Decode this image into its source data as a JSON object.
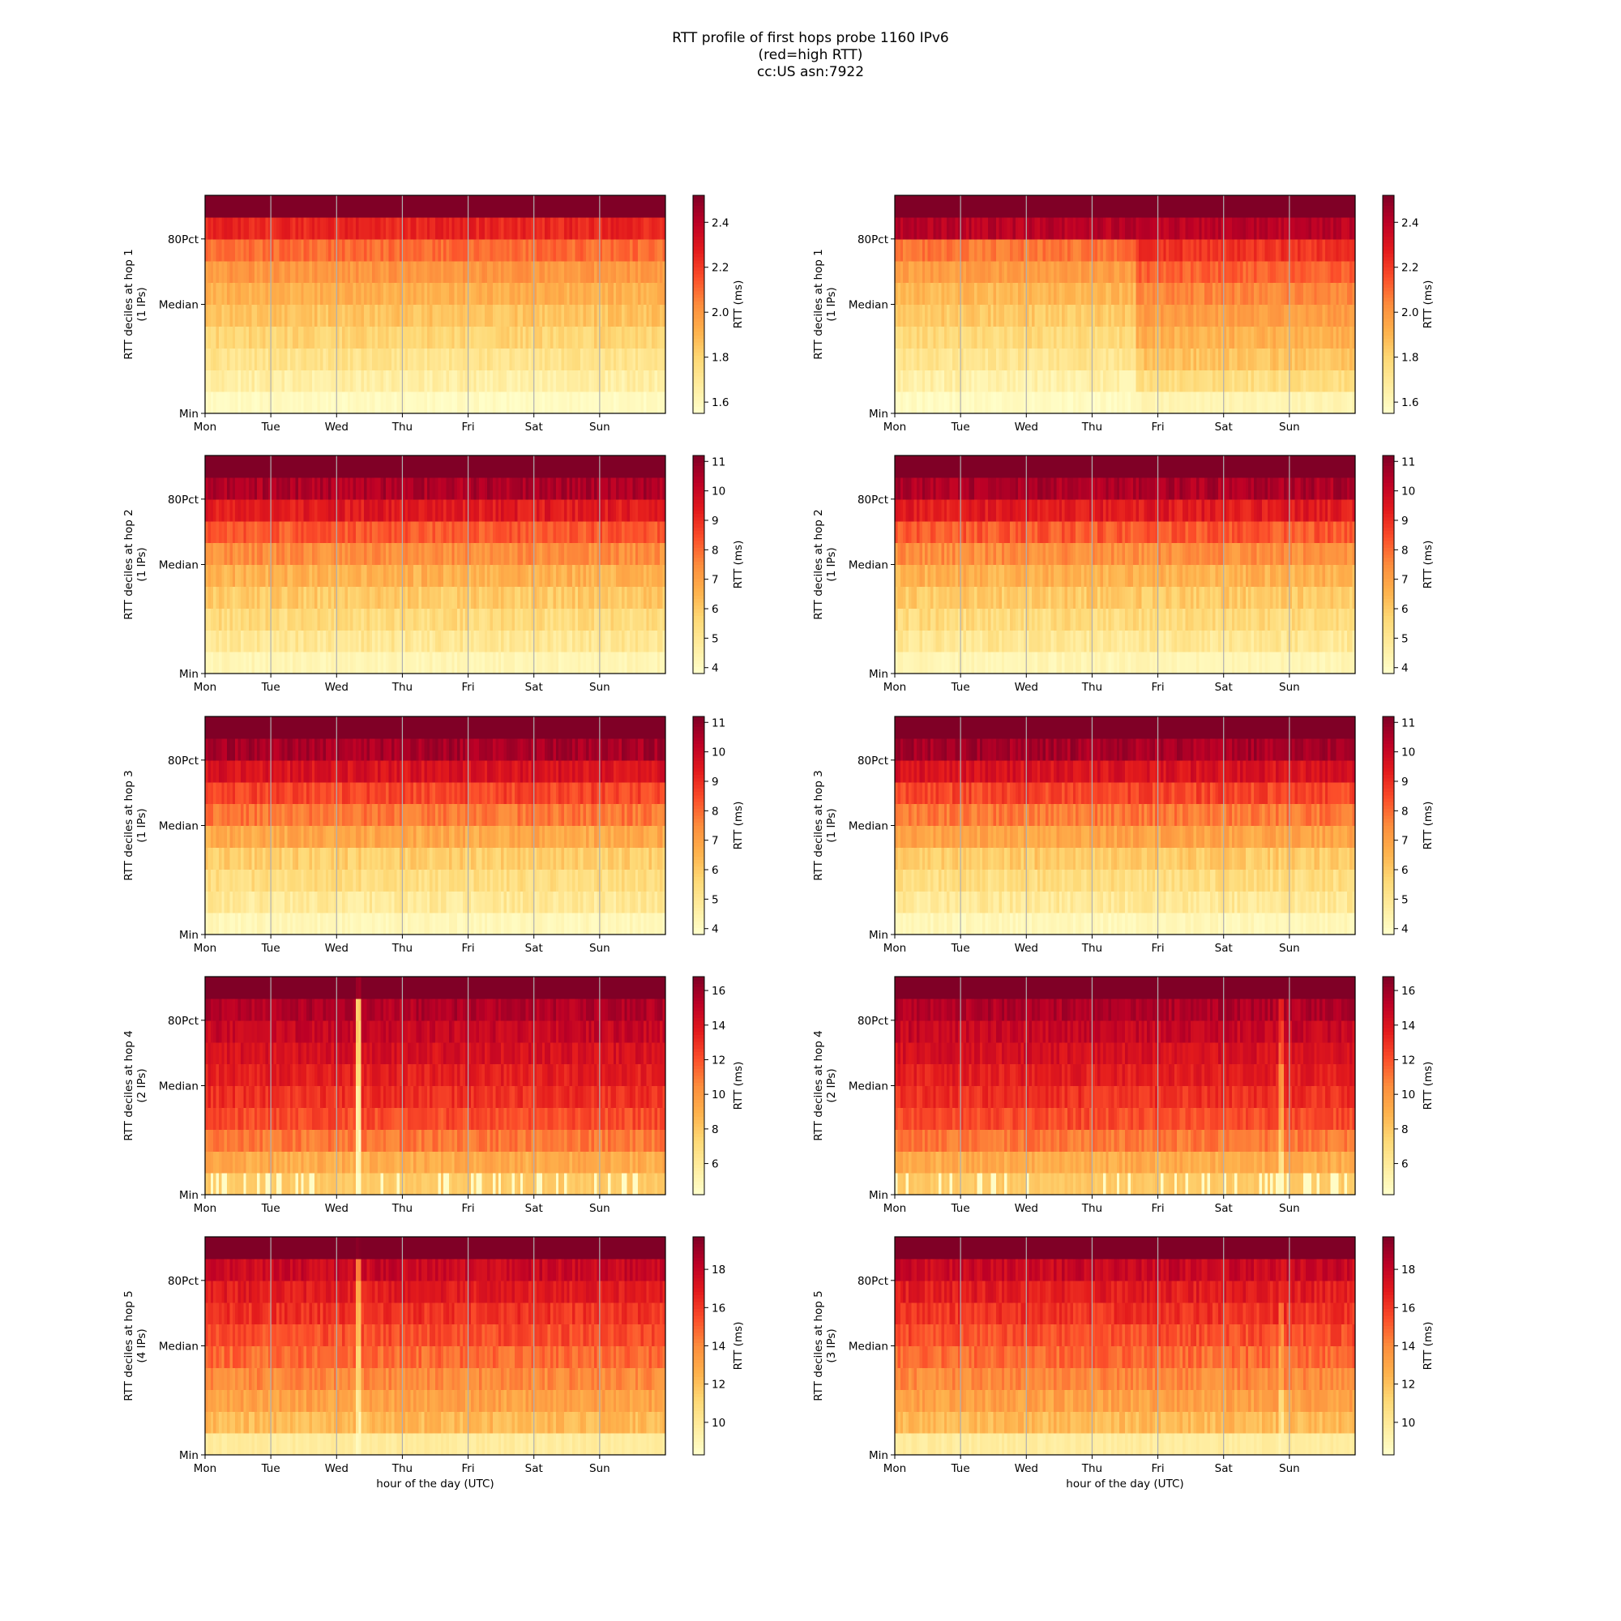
{
  "figure": {
    "title_lines": [
      "RTT profile of first hops probe 1160 IPv6",
      "(red=high RTT)",
      "cc:US asn:7922"
    ]
  },
  "colormap": {
    "name": "YlOrRd",
    "stops": [
      "#ffffcc",
      "#ffeda0",
      "#fed976",
      "#feb24c",
      "#fd8d3c",
      "#fc4e2a",
      "#e31a1c",
      "#bd0026",
      "#800026"
    ]
  },
  "chart_data": [
    {
      "type": "heatmap",
      "panel": "left",
      "ylabel": "RTT deciles at hop 1",
      "ylabel2": "(1 IPs)",
      "xlabel": "",
      "x_ticks": [
        "Mon",
        "Tue",
        "Wed",
        "Thu",
        "Fri",
        "Sat",
        "Sun"
      ],
      "y_ticks": [
        "Min",
        "Median",
        "80Pct"
      ],
      "colorbar_label": "RTT (ms)",
      "colorbar_ticks": [
        1.6,
        1.8,
        2.0,
        2.2,
        2.4
      ],
      "clim": [
        1.55,
        2.52
      ],
      "deciles_ms": [
        1.58,
        1.66,
        1.73,
        1.8,
        1.86,
        1.92,
        2.0,
        2.1,
        2.25,
        2.55
      ],
      "noise": 0.05,
      "seed": 11,
      "events": []
    },
    {
      "type": "heatmap",
      "panel": "right",
      "ylabel": "RTT deciles at hop 1",
      "ylabel2": "(1 IPs)",
      "xlabel": "",
      "x_ticks": [
        "Mon",
        "Tue",
        "Wed",
        "Thu",
        "Fri",
        "Sat",
        "Sun"
      ],
      "y_ticks": [
        "Min",
        "Median",
        "80Pct"
      ],
      "colorbar_label": "RTT (ms)",
      "colorbar_ticks": [
        1.6,
        1.8,
        2.0,
        2.2,
        2.4
      ],
      "clim": [
        1.55,
        2.52
      ],
      "deciles_ms": [
        1.58,
        1.65,
        1.72,
        1.78,
        1.84,
        1.9,
        1.98,
        2.08,
        2.4,
        2.55
      ],
      "noise": 0.05,
      "seed": 12,
      "events": [
        {
          "start_day": 3.65,
          "end_day": 7.0,
          "deciles_ms": [
            1.62,
            1.76,
            1.86,
            1.92,
            1.98,
            2.04,
            2.12,
            2.22,
            2.4,
            2.55
          ]
        }
      ]
    },
    {
      "type": "heatmap",
      "panel": "left",
      "ylabel": "RTT deciles at hop 2",
      "ylabel2": "(1 IPs)",
      "xlabel": "",
      "x_ticks": [
        "Mon",
        "Tue",
        "Wed",
        "Thu",
        "Fri",
        "Sat",
        "Sun"
      ],
      "y_ticks": [
        "Min",
        "Median",
        "80Pct"
      ],
      "colorbar_label": "RTT (ms)",
      "colorbar_ticks": [
        4,
        5,
        6,
        7,
        8,
        9,
        10,
        11
      ],
      "clim": [
        3.8,
        11.2
      ],
      "deciles_ms": [
        4.3,
        5.0,
        5.5,
        6.0,
        6.6,
        7.4,
        8.3,
        9.4,
        10.5,
        11.5
      ],
      "noise": 0.45,
      "seed": 21,
      "events": []
    },
    {
      "type": "heatmap",
      "panel": "right",
      "ylabel": "RTT deciles at hop 2",
      "ylabel2": "(1 IPs)",
      "xlabel": "",
      "x_ticks": [
        "Mon",
        "Tue",
        "Wed",
        "Thu",
        "Fri",
        "Sat",
        "Sun"
      ],
      "y_ticks": [
        "Min",
        "Median",
        "80Pct"
      ],
      "colorbar_label": "RTT (ms)",
      "colorbar_ticks": [
        4,
        5,
        6,
        7,
        8,
        9,
        10,
        11
      ],
      "clim": [
        3.8,
        11.2
      ],
      "deciles_ms": [
        4.3,
        5.0,
        5.5,
        6.0,
        6.6,
        7.4,
        8.3,
        9.4,
        10.5,
        11.5
      ],
      "noise": 0.45,
      "seed": 22,
      "events": []
    },
    {
      "type": "heatmap",
      "panel": "left",
      "ylabel": "RTT deciles at hop 3",
      "ylabel2": "(1 IPs)",
      "xlabel": "",
      "x_ticks": [
        "Mon",
        "Tue",
        "Wed",
        "Thu",
        "Fri",
        "Sat",
        "Sun"
      ],
      "y_ticks": [
        "Min",
        "Median",
        "80Pct"
      ],
      "colorbar_label": "RTT (ms)",
      "colorbar_ticks": [
        4,
        5,
        6,
        7,
        8,
        9,
        10,
        11
      ],
      "clim": [
        3.8,
        11.2
      ],
      "deciles_ms": [
        4.2,
        4.9,
        5.4,
        5.9,
        6.8,
        7.8,
        8.6,
        9.6,
        10.6,
        11.5
      ],
      "noise": 0.45,
      "seed": 31,
      "events": []
    },
    {
      "type": "heatmap",
      "panel": "right",
      "ylabel": "RTT deciles at hop 3",
      "ylabel2": "(1 IPs)",
      "xlabel": "",
      "x_ticks": [
        "Mon",
        "Tue",
        "Wed",
        "Thu",
        "Fri",
        "Sat",
        "Sun"
      ],
      "y_ticks": [
        "Min",
        "Median",
        "80Pct"
      ],
      "colorbar_label": "RTT (ms)",
      "colorbar_ticks": [
        4,
        5,
        6,
        7,
        8,
        9,
        10,
        11
      ],
      "clim": [
        3.8,
        11.2
      ],
      "deciles_ms": [
        4.2,
        4.9,
        5.4,
        6.0,
        6.9,
        7.8,
        8.6,
        9.6,
        10.6,
        11.5
      ],
      "noise": 0.45,
      "seed": 32,
      "events": []
    },
    {
      "type": "heatmap",
      "panel": "left",
      "ylabel": "RTT deciles at hop 4",
      "ylabel2": "(2 IPs)",
      "xlabel": "",
      "x_ticks": [
        "Mon",
        "Tue",
        "Wed",
        "Thu",
        "Fri",
        "Sat",
        "Sun"
      ],
      "y_ticks": [
        "Min",
        "Median",
        "80Pct"
      ],
      "colorbar_label": "RTT (ms)",
      "colorbar_ticks": [
        6,
        8,
        10,
        12,
        14,
        16
      ],
      "clim": [
        4.2,
        16.8
      ],
      "deciles_ms": [
        8.0,
        9.2,
        11.0,
        12.2,
        13.0,
        13.6,
        14.2,
        14.8,
        15.5,
        17.5
      ],
      "noise": 0.7,
      "seed": 41,
      "min_row_spikes": true,
      "events": [
        {
          "start_day": 2.3,
          "end_day": 2.38,
          "deciles_ms": [
            4.6,
            5.0,
            5.4,
            5.8,
            6.2,
            6.6,
            7.0,
            7.5,
            8.2,
            16.0
          ]
        }
      ]
    },
    {
      "type": "heatmap",
      "panel": "right",
      "ylabel": "RTT deciles at hop 4",
      "ylabel2": "(2 IPs)",
      "xlabel": "",
      "x_ticks": [
        "Mon",
        "Tue",
        "Wed",
        "Thu",
        "Fri",
        "Sat",
        "Sun"
      ],
      "y_ticks": [
        "Min",
        "Median",
        "80Pct"
      ],
      "colorbar_label": "RTT (ms)",
      "colorbar_ticks": [
        6,
        8,
        10,
        12,
        14,
        16
      ],
      "clim": [
        4.2,
        16.8
      ],
      "deciles_ms": [
        8.0,
        9.2,
        11.0,
        12.2,
        13.0,
        13.6,
        14.2,
        14.8,
        15.5,
        17.5
      ],
      "noise": 0.7,
      "seed": 42,
      "min_row_spikes": true,
      "events": [
        {
          "start_day": 5.83,
          "end_day": 5.92,
          "deciles_ms": [
            5.0,
            6.5,
            8.5,
            9.5,
            10.2,
            10.8,
            11.5,
            12.5,
            13.5,
            17.0
          ]
        }
      ]
    },
    {
      "type": "heatmap",
      "panel": "left",
      "ylabel": "RTT deciles at hop 5",
      "ylabel2": "(4 IPs)",
      "xlabel": "hour of the day (UTC)",
      "x_ticks": [
        "Mon",
        "Tue",
        "Wed",
        "Thu",
        "Fri",
        "Sat",
        "Sun"
      ],
      "y_ticks": [
        "Min",
        "Median",
        "80Pct"
      ],
      "colorbar_label": "RTT (ms)",
      "colorbar_ticks": [
        10,
        12,
        14,
        16,
        18
      ],
      "clim": [
        8.3,
        19.7
      ],
      "deciles_ms": [
        9.8,
        12.3,
        13.2,
        14.0,
        14.8,
        15.5,
        16.2,
        16.9,
        17.8,
        20.0
      ],
      "noise": 0.7,
      "seed": 51,
      "events": [
        {
          "start_day": 2.3,
          "end_day": 2.38,
          "deciles_ms": [
            9.0,
            9.6,
            10.2,
            10.8,
            11.4,
            12.0,
            12.6,
            13.2,
            14.0,
            19.5
          ]
        }
      ]
    },
    {
      "type": "heatmap",
      "panel": "right",
      "ylabel": "RTT deciles at hop 5",
      "ylabel2": "(3 IPs)",
      "xlabel": "hour of the day (UTC)",
      "x_ticks": [
        "Mon",
        "Tue",
        "Wed",
        "Thu",
        "Fri",
        "Sat",
        "Sun"
      ],
      "y_ticks": [
        "Min",
        "Median",
        "80Pct"
      ],
      "colorbar_label": "RTT (ms)",
      "colorbar_ticks": [
        10,
        12,
        14,
        16,
        18
      ],
      "clim": [
        8.3,
        19.7
      ],
      "deciles_ms": [
        9.8,
        12.3,
        13.2,
        14.0,
        14.8,
        15.5,
        16.2,
        16.9,
        17.8,
        20.0
      ],
      "noise": 0.7,
      "seed": 52,
      "events": [
        {
          "start_day": 5.83,
          "end_day": 5.92,
          "deciles_ms": [
            9.2,
            10.5,
            11.5,
            12.5,
            13.2,
            14.0,
            15.0,
            16.0,
            17.2,
            20.0
          ]
        }
      ]
    }
  ]
}
